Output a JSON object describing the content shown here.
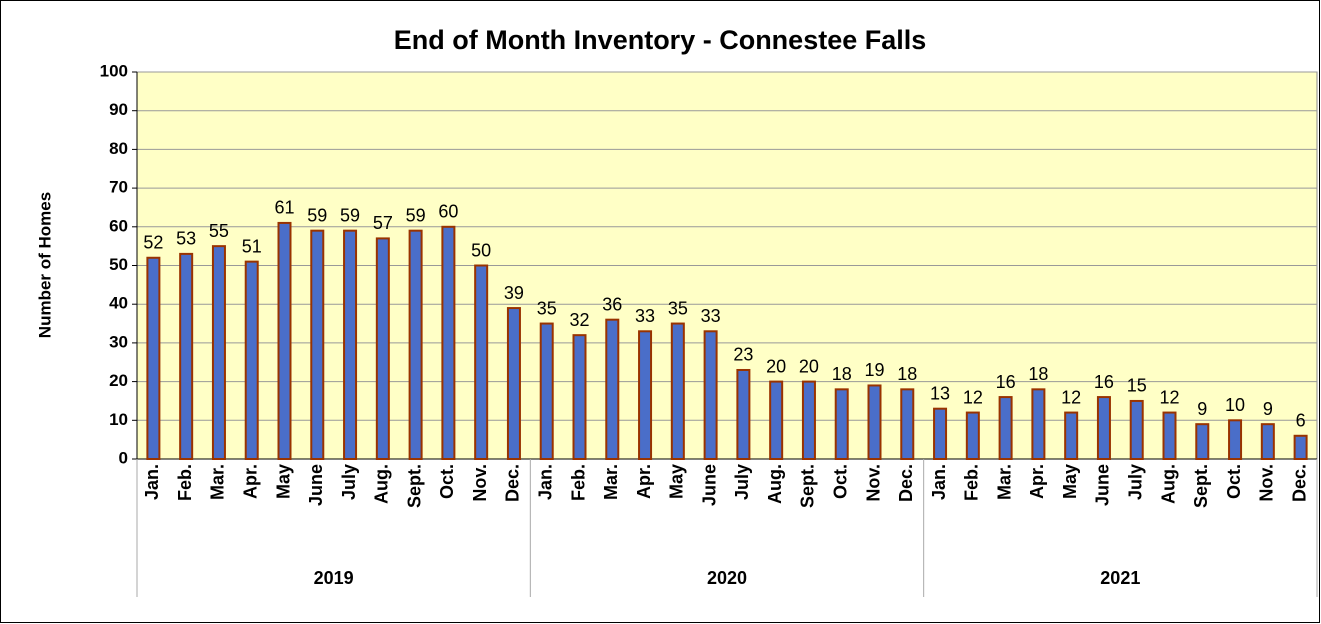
{
  "chart_data": {
    "type": "bar",
    "title": "End of Month Inventory - Connestee Falls",
    "y_label": "Number of Homes",
    "groups": [
      {
        "name": "2019",
        "categories": [
          "Jan.",
          "Feb.",
          "Mar.",
          "Apr.",
          "May",
          "June",
          "July",
          "Aug.",
          "Sept.",
          "Oct.",
          "Nov.",
          "Dec."
        ],
        "values": [
          52,
          53,
          55,
          51,
          61,
          59,
          59,
          57,
          59,
          60,
          50,
          39
        ]
      },
      {
        "name": "2020",
        "categories": [
          "Jan.",
          "Feb.",
          "Mar.",
          "Apr.",
          "May",
          "June",
          "July",
          "Aug.",
          "Sept.",
          "Oct.",
          "Nov.",
          "Dec."
        ],
        "values": [
          35,
          32,
          36,
          33,
          35,
          33,
          23,
          20,
          20,
          18,
          19,
          18
        ]
      },
      {
        "name": "2021",
        "categories": [
          "Jan.",
          "Feb.",
          "Mar.",
          "Apr.",
          "May",
          "June",
          "July",
          "Aug.",
          "Sept.",
          "Oct.",
          "Nov.",
          "Dec."
        ],
        "values": [
          13,
          12,
          16,
          18,
          12,
          16,
          15,
          12,
          9,
          10,
          9,
          6
        ]
      }
    ],
    "color": "#4a6ec9",
    "edge_color": "#993300",
    "plot_background": "#ffffc6",
    "ylim": [
      0,
      100
    ],
    "yticks": [
      0,
      10,
      20,
      30,
      40,
      50,
      60,
      70,
      80,
      90,
      100
    ],
    "grid": true
  }
}
